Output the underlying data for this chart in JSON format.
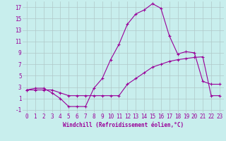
{
  "xlabel": "Windchill (Refroidissement éolien,°C)",
  "background_color": "#c8eeed",
  "grid_color": "#b0c8c8",
  "line_color": "#990099",
  "xlim": [
    -0.5,
    23.5
  ],
  "ylim": [
    -1.5,
    18.0
  ],
  "yticks": [
    -1,
    1,
    3,
    5,
    7,
    9,
    11,
    13,
    15,
    17
  ],
  "xticks": [
    0,
    1,
    2,
    3,
    4,
    5,
    6,
    7,
    8,
    9,
    10,
    11,
    12,
    13,
    14,
    15,
    16,
    17,
    18,
    19,
    20,
    21,
    22,
    23
  ],
  "series1_x": [
    0,
    1,
    2,
    3,
    4,
    5,
    6,
    7,
    8,
    9,
    10,
    11,
    12,
    13,
    14,
    15,
    16,
    17,
    18,
    19,
    20,
    21,
    22,
    23
  ],
  "series1_y": [
    2.5,
    2.8,
    2.8,
    2.0,
    1.0,
    -0.4,
    -0.4,
    -0.4,
    2.8,
    4.5,
    7.8,
    10.5,
    14.0,
    15.8,
    16.5,
    17.6,
    16.8,
    12.0,
    8.8,
    9.2,
    9.0,
    4.0,
    3.5,
    3.5
  ],
  "series2_x": [
    0,
    1,
    2,
    3,
    4,
    5,
    6,
    7,
    8,
    9,
    10,
    11,
    12,
    13,
    14,
    15,
    16,
    17,
    18,
    19,
    20,
    21,
    22,
    23
  ],
  "series2_y": [
    2.5,
    2.5,
    2.5,
    2.5,
    2.0,
    1.5,
    1.5,
    1.5,
    1.5,
    1.5,
    1.5,
    1.5,
    3.5,
    4.5,
    5.5,
    6.5,
    7.0,
    7.5,
    7.8,
    8.0,
    8.2,
    8.3,
    1.5,
    1.5
  ],
  "xlabel_fontsize": 5.5,
  "tick_fontsize": 5.5
}
